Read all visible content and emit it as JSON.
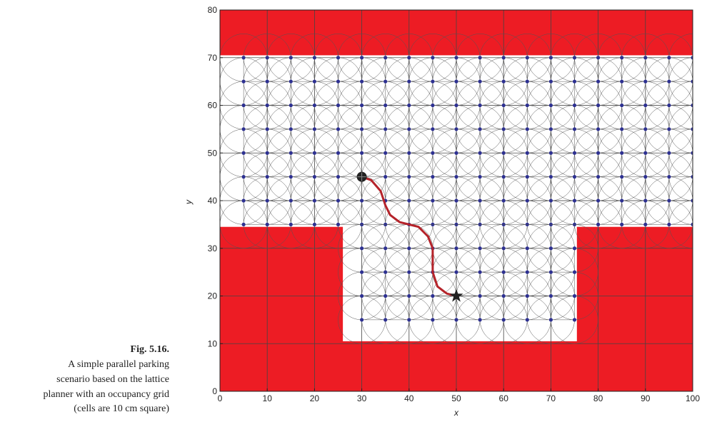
{
  "caption": {
    "label": "Fig. 5.16.",
    "lines": [
      "A simple parallel parking",
      "scenario based on the lattice",
      "planner with an occupancy grid",
      "(cells are 10 cm square)"
    ]
  },
  "chart_data": {
    "type": "lattice",
    "xlabel": "x",
    "ylabel": "y",
    "xlim": [
      0,
      100
    ],
    "ylim": [
      0,
      80
    ],
    "xticks": [
      0,
      10,
      20,
      30,
      40,
      50,
      60,
      70,
      80,
      90,
      100
    ],
    "yticks": [
      0,
      10,
      20,
      30,
      40,
      50,
      60,
      70,
      80
    ],
    "grid": true,
    "obstacle_color": "#ed1c24",
    "obstacles": [
      {
        "x": [
          0,
          100
        ],
        "y": [
          70.5,
          80
        ]
      },
      {
        "x": [
          0,
          26
        ],
        "y": [
          0,
          34.5
        ]
      },
      {
        "x": [
          75.5,
          100
        ],
        "y": [
          0,
          34.5
        ]
      },
      {
        "x": [
          0,
          100
        ],
        "y": [
          0,
          10.5
        ]
      }
    ],
    "node_color": "#2e3192",
    "node_spacing": 5,
    "lattice": [
      {
        "x": [
          5,
          100
        ],
        "y": [
          35,
          70
        ]
      },
      {
        "x": [
          30,
          75
        ],
        "y": [
          15,
          30
        ]
      }
    ],
    "path": {
      "color": "#b5232a",
      "x": [
        30,
        32,
        34,
        35,
        36,
        38,
        40,
        42,
        44,
        45,
        45,
        46,
        48,
        50
      ],
      "y": [
        45,
        44.3,
        42,
        39,
        37,
        35.5,
        35,
        34.5,
        32.5,
        30,
        25,
        22,
        20.5,
        20
      ]
    },
    "start": [
      30,
      45
    ],
    "goal": [
      50,
      20
    ]
  }
}
